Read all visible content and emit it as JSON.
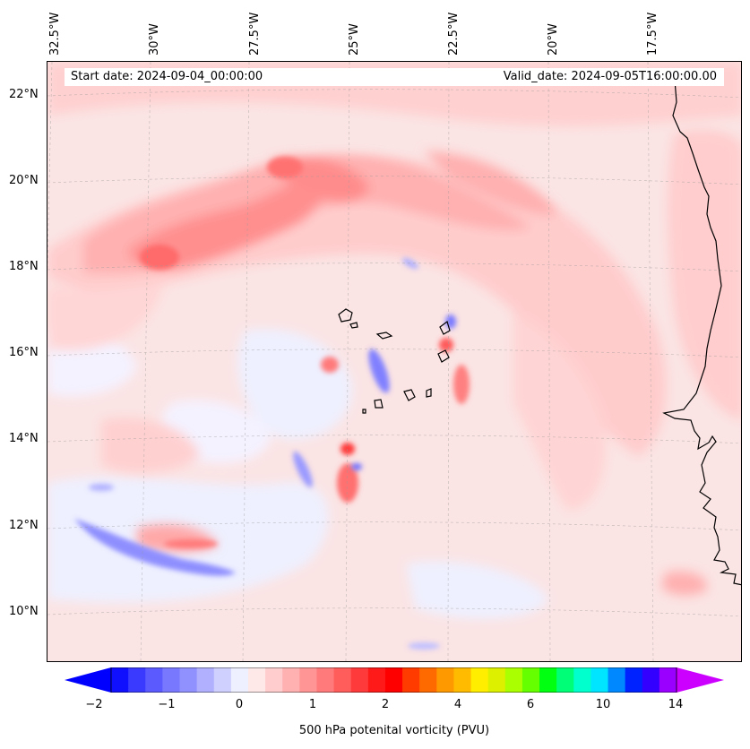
{
  "banner": {
    "start_date": "Start date: 2024-09-04_00:00:00",
    "valid_date": "Valid_date: 2024-09-05T16:00:00.00"
  },
  "map": {
    "longitude_labels": [
      "32.5°W",
      "30°W",
      "27.5°W",
      "25°W",
      "22.5°W",
      "20°W",
      "17.5°W"
    ],
    "latitude_labels": [
      "22°N",
      "20°N",
      "18°N",
      "16°N",
      "14°N",
      "12°N",
      "10°N"
    ],
    "extent": {
      "lon": [
        -32.5,
        -14.8
      ],
      "lat": [
        8.9,
        22.8
      ]
    },
    "field": "potential vorticity",
    "coastline_color": "#000000"
  },
  "colorbar": {
    "label": "500 hPa potenital vorticity (PVU)",
    "tick_labels": [
      "−2",
      "−1",
      "0",
      "1",
      "2",
      "4",
      "6",
      "10",
      "14"
    ],
    "colors": [
      "#1010ff",
      "#3a3aff",
      "#5a5aff",
      "#7878ff",
      "#9090ff",
      "#b0b0ff",
      "#d0d0ff",
      "#eef0ff",
      "#ffe8e8",
      "#ffcdcd",
      "#ffb0b0",
      "#ff9595",
      "#ff7a7a",
      "#ff5c5c",
      "#ff3a3a",
      "#ff1a1a",
      "#ff0000",
      "#ff3b00",
      "#ff6a00",
      "#ff9900",
      "#ffbb00",
      "#ffee00",
      "#ddf000",
      "#aaff00",
      "#66ff00",
      "#00ff11",
      "#00ff77",
      "#00ffcc",
      "#00e5ff",
      "#0088ff",
      "#0022ff",
      "#3300ff",
      "#9900ff"
    ],
    "extend_min_color": "#0000ff",
    "extend_max_color": "#cc00ff"
  }
}
